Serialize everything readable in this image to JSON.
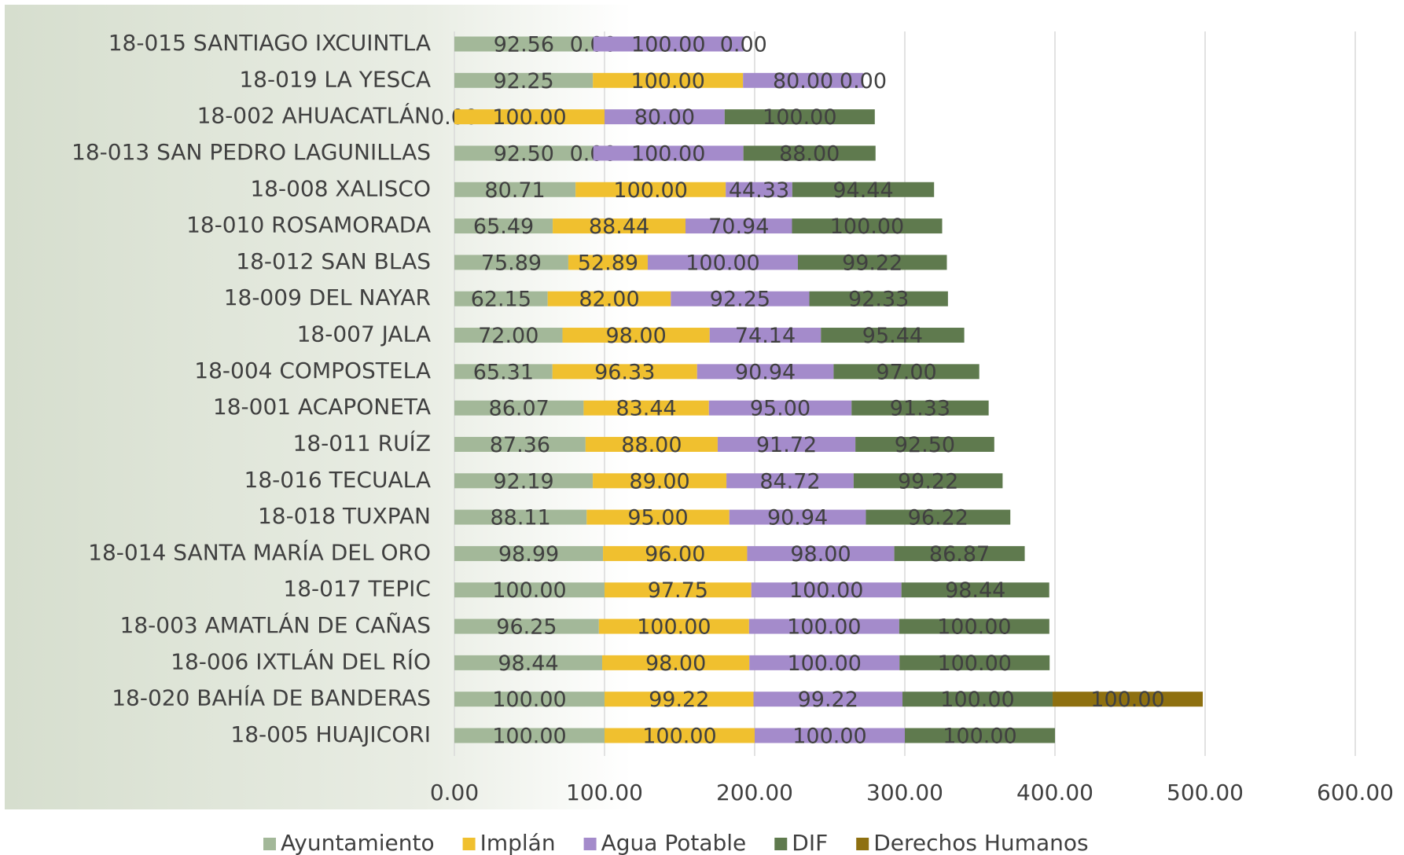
{
  "chart_data": {
    "type": "stacked-barh",
    "categories": [
      "18-015 SANTIAGO IXCUINTLA",
      "18-019 LA YESCA",
      "18-002 AHUACATLÁN",
      "18-013 SAN PEDRO LAGUNILLAS",
      "18-008 XALISCO",
      "18-010 ROSAMORADA",
      "18-012 SAN BLAS",
      "18-009 DEL NAYAR",
      "18-007 JALA",
      "18-004 COMPOSTELA",
      "18-001 ACAPONETA",
      "18-011 RUÍZ",
      "18-016 TECUALA",
      "18-018 TUXPAN",
      "18-014 SANTA MARÍA DEL ORO",
      "18-017 TEPIC",
      "18-003 AMATLÁN DE CAÑAS",
      "18-006 IXTLÁN DEL RÍO",
      "18-020 BAHÍA DE BANDERAS",
      "18-005 HUAJICORI"
    ],
    "series": [
      {
        "name": "Ayuntamiento",
        "color": "#a3b899",
        "values": [
          92.56,
          92.25,
          0,
          92.5,
          80.71,
          65.49,
          75.89,
          62.15,
          72,
          65.31,
          86.07,
          87.36,
          92.19,
          88.11,
          98.99,
          100,
          96.25,
          98.44,
          100,
          100
        ],
        "value_labels": [
          "92.56",
          "92.25",
          "0.00",
          "92.50",
          "80.71",
          "65.49",
          "75.89",
          "62.15",
          "72.00",
          "65.31",
          "86.07",
          "87.36",
          "92.19",
          "88.11",
          "98.99",
          "100.00",
          "96.25",
          "98.44",
          "100.00",
          "100.00"
        ]
      },
      {
        "name": "Implán",
        "color": "#f0c02f",
        "values": [
          0,
          100,
          100,
          0,
          100,
          88.44,
          52.89,
          82,
          98,
          96.33,
          83.44,
          88,
          89,
          95,
          96,
          97.75,
          100,
          98,
          99.22,
          100
        ],
        "value_labels": [
          "0.00",
          "100.00",
          "100.00",
          "0.00",
          "100.00",
          "88.44",
          "52.89",
          "82.00",
          "98.00",
          "96.33",
          "83.44",
          "88.00",
          "89.00",
          "95.00",
          "96.00",
          "97.75",
          "100.00",
          "98.00",
          "99.22",
          "100.00"
        ]
      },
      {
        "name": "Agua Potable",
        "color": "#a48bcb",
        "values": [
          100,
          80,
          80,
          100,
          44.33,
          70.94,
          100,
          92.25,
          74.14,
          90.94,
          95,
          91.72,
          84.72,
          90.94,
          98,
          100,
          100,
          100,
          99.22,
          100
        ],
        "value_labels": [
          "100.00",
          "80.00",
          "80.00",
          "100.00",
          "44.33",
          "70.94",
          "100.00",
          "92.25",
          "74.14",
          "90.94",
          "95.00",
          "91.72",
          "84.72",
          "90.94",
          "98.00",
          "100.00",
          "100.00",
          "100.00",
          "99.22",
          "100.00"
        ]
      },
      {
        "name": "DIF",
        "color": "#5f7a4e",
        "values": [
          0,
          0,
          100,
          88,
          94.44,
          100,
          99.22,
          92.33,
          95.44,
          97,
          91.33,
          92.5,
          99.22,
          96.22,
          86.87,
          98.44,
          100,
          100,
          100,
          100
        ],
        "value_labels": [
          "0.00",
          "0.00",
          "100.00",
          "88.00",
          "94.44",
          "100.00",
          "99.22",
          "92.33",
          "95.44",
          "97.00",
          "91.33",
          "92.50",
          "99.22",
          "96.22",
          "86.87",
          "98.44",
          "100.00",
          "100.00",
          "100.00",
          "100.00"
        ]
      },
      {
        "name": "Derechos Humanos",
        "color": "#8e7010",
        "values": [
          null,
          null,
          null,
          null,
          null,
          null,
          null,
          null,
          null,
          null,
          null,
          null,
          null,
          null,
          null,
          null,
          null,
          null,
          100,
          null
        ],
        "value_labels": [
          null,
          null,
          null,
          null,
          null,
          null,
          null,
          null,
          null,
          null,
          null,
          null,
          null,
          null,
          null,
          null,
          null,
          null,
          "100.00",
          null
        ]
      }
    ],
    "xlim": [
      0,
      600
    ],
    "xticks": [
      {
        "value": 0,
        "label": "0.00"
      },
      {
        "value": 100,
        "label": "100.00"
      },
      {
        "value": 200,
        "label": "200.00"
      },
      {
        "value": 300,
        "label": "300.00"
      },
      {
        "value": 400,
        "label": "400.00"
      },
      {
        "value": 500,
        "label": "500.00"
      },
      {
        "value": 600,
        "label": "600.00"
      }
    ],
    "grid": true,
    "legend": "bottom"
  }
}
